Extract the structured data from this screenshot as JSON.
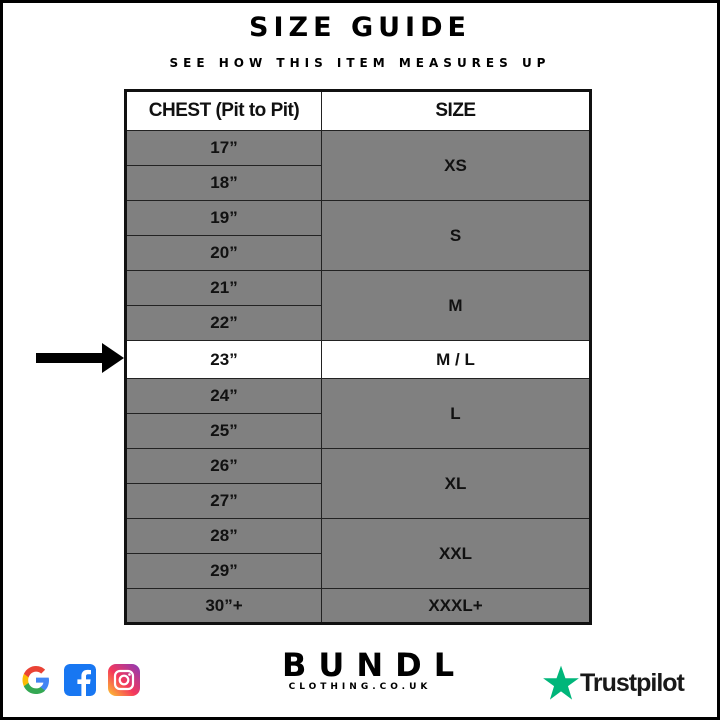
{
  "title": "SIZE GUIDE",
  "subtitle": "SEE HOW THIS ITEM MEASURES UP",
  "table": {
    "headers": [
      "CHEST (Pit to Pit)",
      "SIZE"
    ],
    "rows": [
      {
        "chest": "17”",
        "size": "XS",
        "span": 2
      },
      {
        "chest": "18”"
      },
      {
        "chest": "19”",
        "size": "S",
        "span": 2
      },
      {
        "chest": "20”"
      },
      {
        "chest": "21”",
        "size": "M",
        "span": 2
      },
      {
        "chest": "22”"
      },
      {
        "chest": "23”",
        "size": "M / L",
        "span": 1,
        "highlight": true
      },
      {
        "chest": "24”",
        "size": "L",
        "span": 2
      },
      {
        "chest": "25”"
      },
      {
        "chest": "26”",
        "size": "XL",
        "span": 2
      },
      {
        "chest": "27”"
      },
      {
        "chest": "28”",
        "size": "XXL",
        "span": 2
      },
      {
        "chest": "29”"
      },
      {
        "chest": "30”+",
        "size": "XXXL+",
        "span": 1
      }
    ]
  },
  "footer": {
    "social_icons": [
      "google-icon",
      "facebook-icon",
      "instagram-icon"
    ],
    "brand": "BUNDL",
    "brand_sub": "CLOTHING.CO.UK",
    "trustpilot": "Trustpilot"
  },
  "colors": {
    "row_gray": "#808080",
    "highlight": "#ffffff",
    "trustpilot_green": "#00b67a"
  }
}
